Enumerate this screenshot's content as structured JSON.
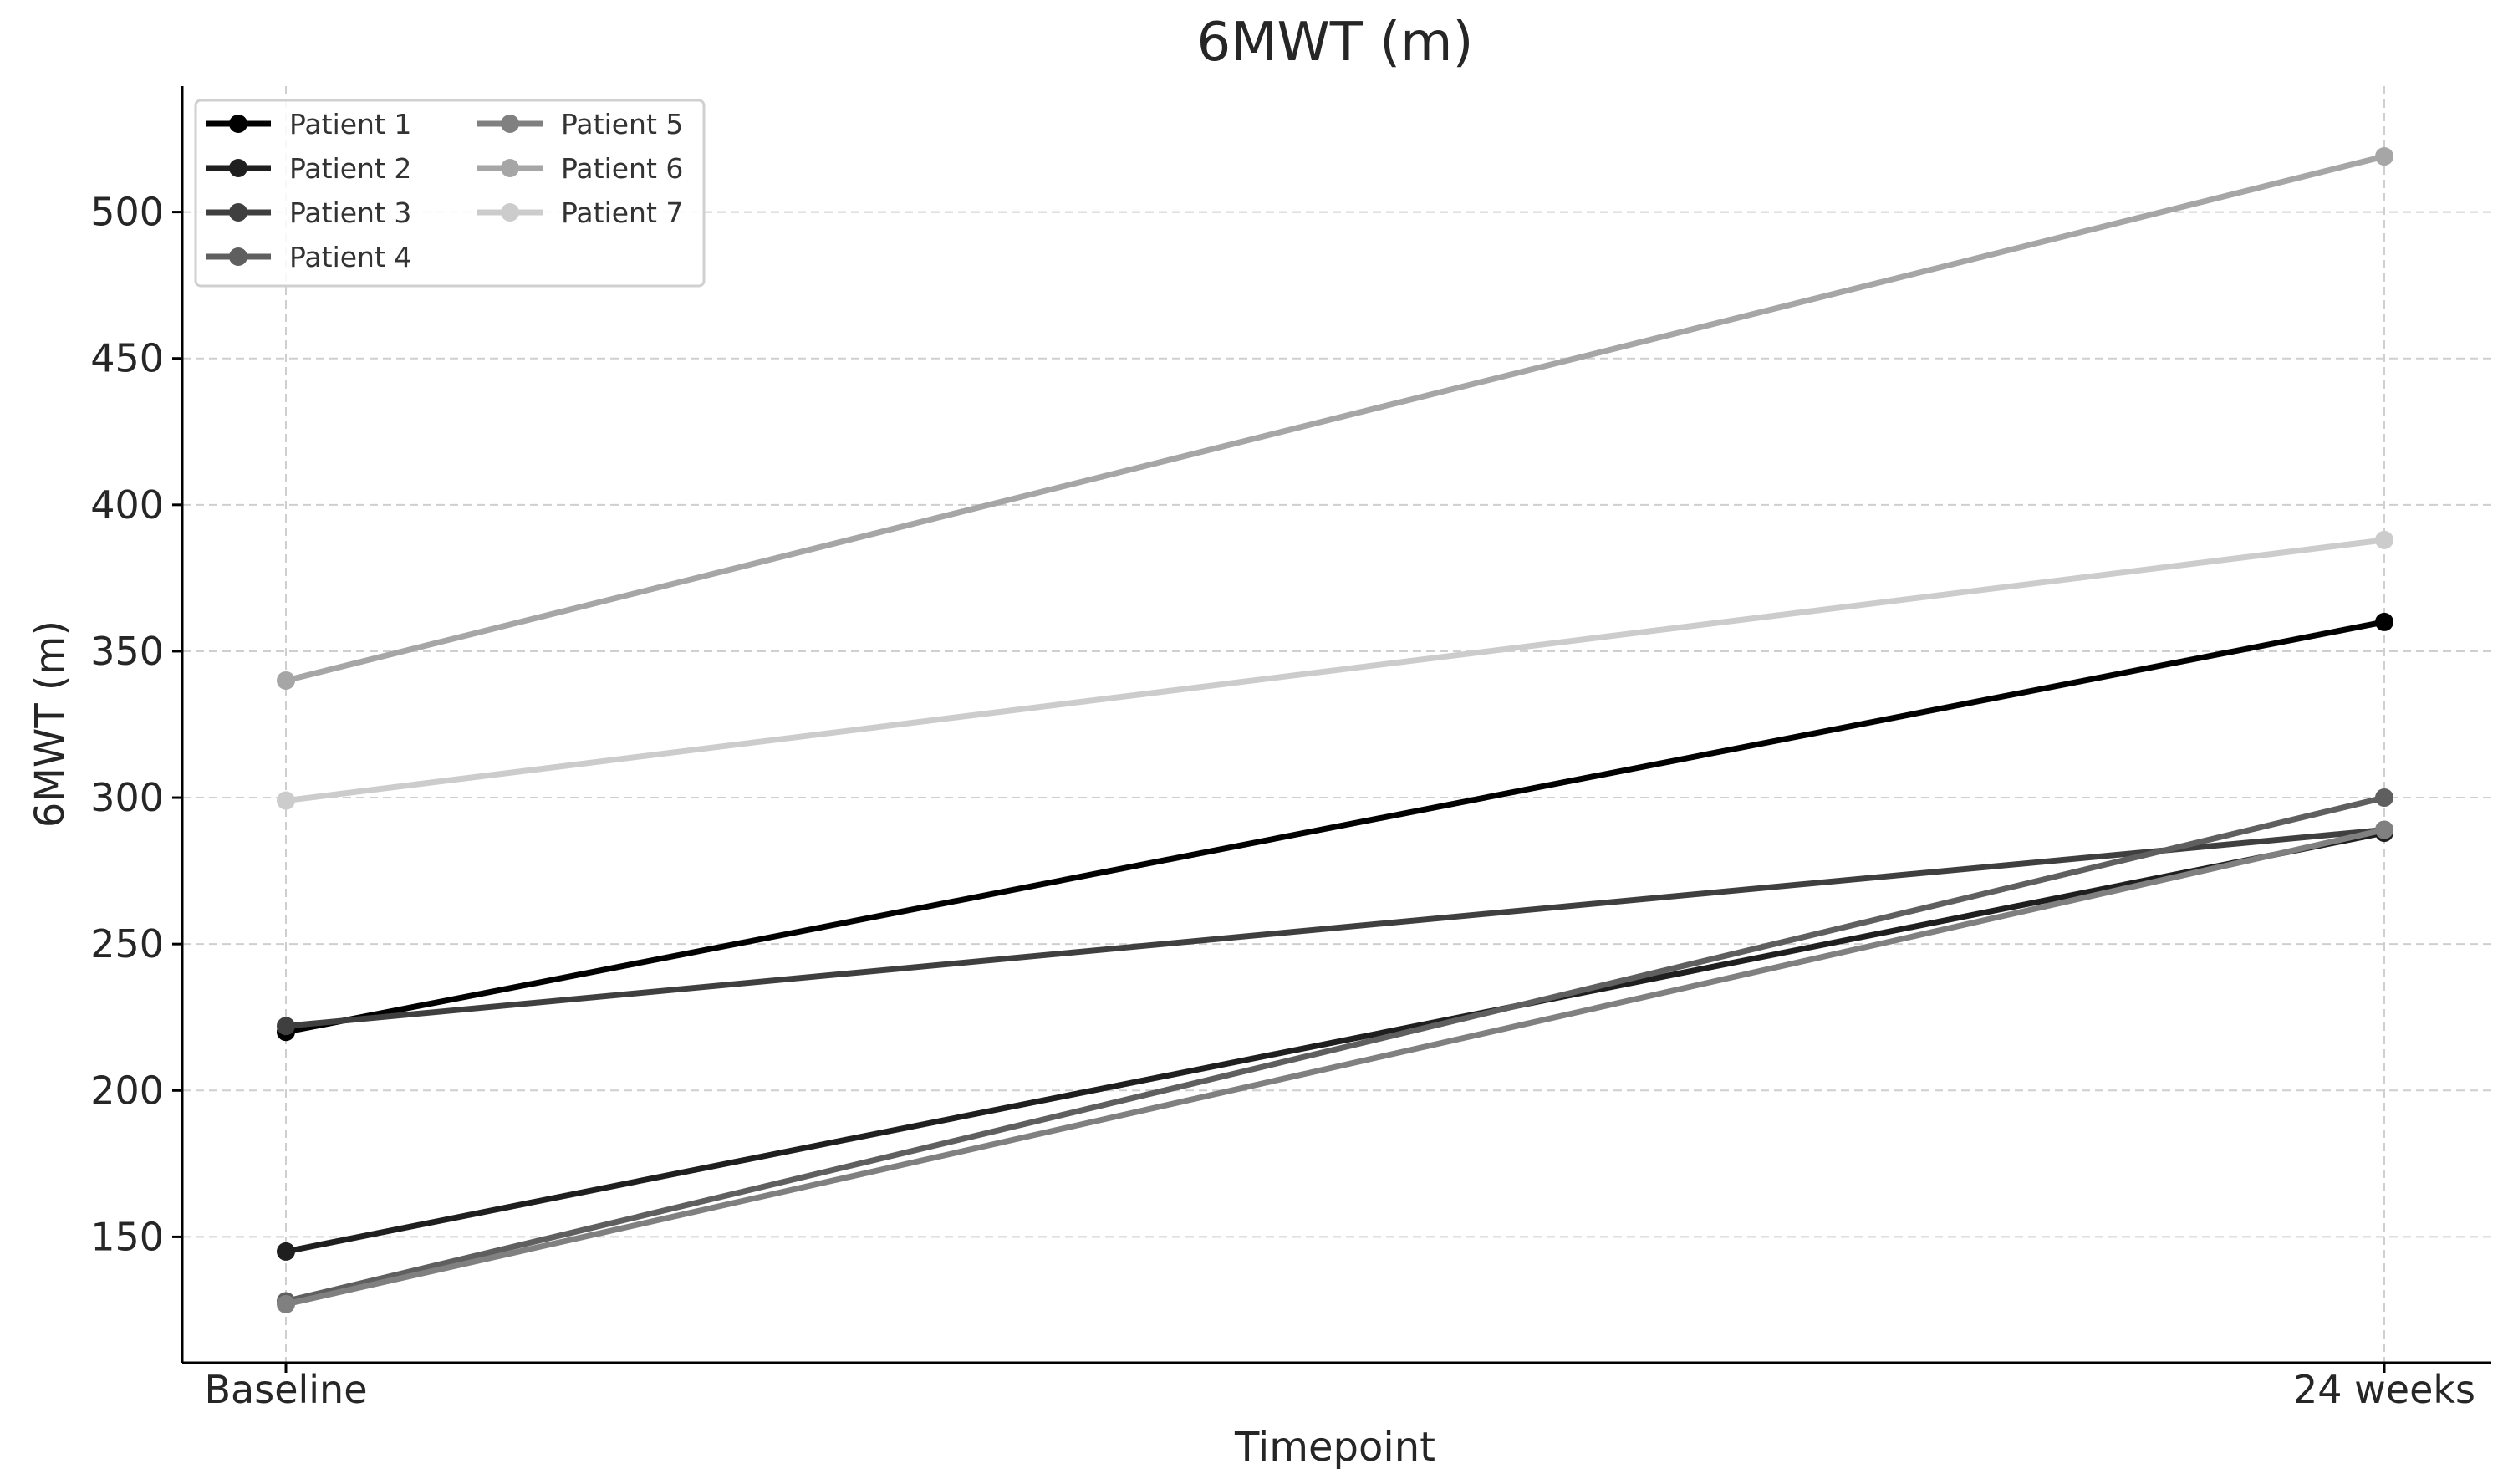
{
  "chart_data": {
    "type": "line",
    "title": "6MWT (m)",
    "xlabel": "Timepoint",
    "ylabel": "6MWT (m)",
    "categories": [
      "Baseline",
      "24 weeks"
    ],
    "ylim": [
      107,
      543
    ],
    "yticks": [
      150,
      200,
      250,
      300,
      350,
      400,
      450,
      500
    ],
    "grid": true,
    "legend": {
      "placement": "top-left",
      "columns": 2
    },
    "series": [
      {
        "name": "Patient 1",
        "values": [
          220,
          360
        ],
        "color": "#000000"
      },
      {
        "name": "Patient 2",
        "values": [
          145,
          288
        ],
        "color": "#1f1f1f"
      },
      {
        "name": "Patient 3",
        "values": [
          222,
          289
        ],
        "color": "#3f3f3f"
      },
      {
        "name": "Patient 4",
        "values": [
          128,
          300
        ],
        "color": "#5f5f5f"
      },
      {
        "name": "Patient 5",
        "values": [
          127,
          289
        ],
        "color": "#808080"
      },
      {
        "name": "Patient 6",
        "values": [
          340,
          519
        ],
        "color": "#a6a6a6"
      },
      {
        "name": "Patient 7",
        "values": [
          299,
          388
        ],
        "color": "#cccccc"
      }
    ]
  }
}
